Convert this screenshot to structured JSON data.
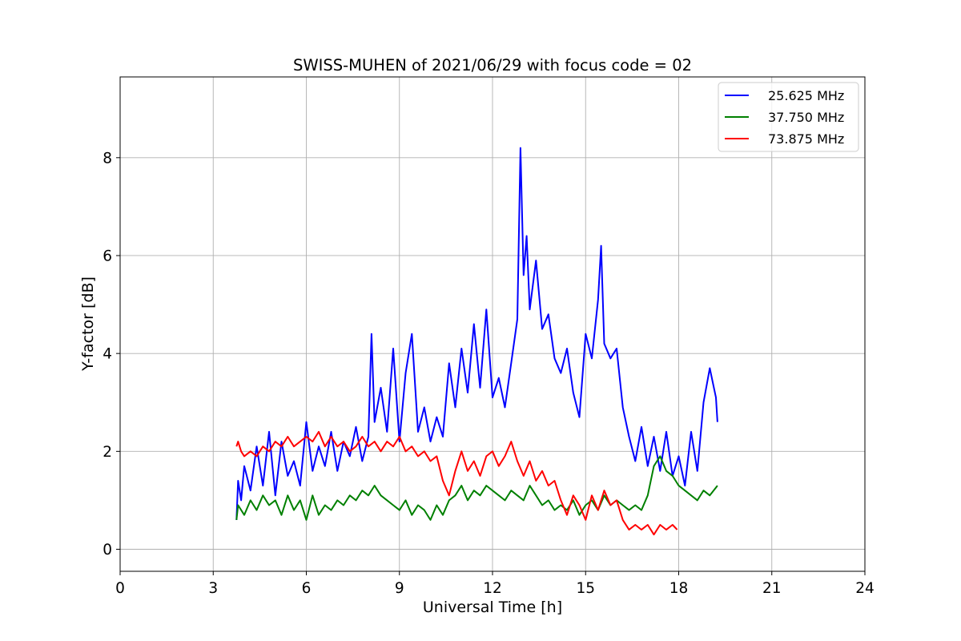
{
  "chart_data": {
    "type": "line",
    "title": "SWISS-MUHEN of 2021/06/29 with focus code = 02",
    "xlabel": "Universal Time [h]",
    "ylabel": "Y-factor [dB]",
    "xlim": [
      0,
      24
    ],
    "ylim": [
      -0.45,
      9.65
    ],
    "xticks": [
      0,
      3,
      6,
      9,
      12,
      15,
      18,
      21,
      24
    ],
    "yticks": [
      0,
      2,
      4,
      6,
      8
    ],
    "grid": true,
    "legend_position": "top-right",
    "series": [
      {
        "name": "25.625 MHz",
        "color": "#0000ff",
        "x": [
          3.75,
          3.8,
          3.9,
          4.0,
          4.2,
          4.4,
          4.6,
          4.8,
          5.0,
          5.2,
          5.4,
          5.6,
          5.8,
          6.0,
          6.2,
          6.4,
          6.6,
          6.8,
          7.0,
          7.2,
          7.4,
          7.6,
          7.8,
          8.0,
          8.1,
          8.2,
          8.4,
          8.6,
          8.8,
          9.0,
          9.2,
          9.4,
          9.6,
          9.8,
          10.0,
          10.2,
          10.4,
          10.6,
          10.8,
          11.0,
          11.2,
          11.4,
          11.6,
          11.8,
          12.0,
          12.2,
          12.4,
          12.6,
          12.8,
          12.9,
          13.0,
          13.1,
          13.2,
          13.4,
          13.6,
          13.8,
          14.0,
          14.2,
          14.4,
          14.6,
          14.8,
          15.0,
          15.2,
          15.4,
          15.5,
          15.6,
          15.8,
          16.0,
          16.2,
          16.4,
          16.6,
          16.8,
          17.0,
          17.2,
          17.4,
          17.6,
          17.8,
          18.0,
          18.2,
          18.4,
          18.6,
          18.8,
          19.0,
          19.2,
          19.25
        ],
        "y": [
          0.6,
          1.4,
          1.0,
          1.7,
          1.2,
          2.1,
          1.3,
          2.4,
          1.1,
          2.2,
          1.5,
          1.8,
          1.3,
          2.6,
          1.6,
          2.1,
          1.7,
          2.4,
          1.6,
          2.2,
          1.9,
          2.5,
          1.8,
          2.3,
          4.4,
          2.6,
          3.3,
          2.4,
          4.1,
          2.2,
          3.6,
          4.4,
          2.4,
          2.9,
          2.2,
          2.7,
          2.3,
          3.8,
          2.9,
          4.1,
          3.2,
          4.6,
          3.3,
          4.9,
          3.1,
          3.5,
          2.9,
          3.8,
          4.7,
          8.2,
          5.6,
          6.4,
          4.9,
          5.9,
          4.5,
          4.8,
          3.9,
          3.6,
          4.1,
          3.2,
          2.7,
          4.4,
          3.9,
          5.1,
          6.2,
          4.2,
          3.9,
          4.1,
          2.9,
          2.3,
          1.8,
          2.5,
          1.7,
          2.3,
          1.6,
          2.4,
          1.5,
          1.9,
          1.3,
          2.4,
          1.6,
          3.0,
          3.7,
          3.1,
          2.6
        ]
      },
      {
        "name": "37.750 MHz",
        "color": "#008000",
        "x": [
          3.75,
          3.8,
          4.0,
          4.2,
          4.4,
          4.6,
          4.8,
          5.0,
          5.2,
          5.4,
          5.6,
          5.8,
          6.0,
          6.2,
          6.4,
          6.6,
          6.8,
          7.0,
          7.2,
          7.4,
          7.6,
          7.8,
          8.0,
          8.2,
          8.4,
          8.6,
          8.8,
          9.0,
          9.2,
          9.4,
          9.6,
          9.8,
          10.0,
          10.2,
          10.4,
          10.6,
          10.8,
          11.0,
          11.2,
          11.4,
          11.6,
          11.8,
          12.0,
          12.2,
          12.4,
          12.6,
          12.8,
          13.0,
          13.2,
          13.4,
          13.6,
          13.8,
          14.0,
          14.2,
          14.4,
          14.6,
          14.8,
          15.0,
          15.2,
          15.4,
          15.6,
          15.8,
          16.0,
          16.2,
          16.4,
          16.6,
          16.8,
          17.0,
          17.2,
          17.4,
          17.6,
          17.8,
          18.0,
          18.2,
          18.4,
          18.6,
          18.8,
          19.0,
          19.25
        ],
        "y": [
          0.6,
          0.9,
          0.7,
          1.0,
          0.8,
          1.1,
          0.9,
          1.0,
          0.7,
          1.1,
          0.8,
          1.0,
          0.6,
          1.1,
          0.7,
          0.9,
          0.8,
          1.0,
          0.9,
          1.1,
          1.0,
          1.2,
          1.1,
          1.3,
          1.1,
          1.0,
          0.9,
          0.8,
          1.0,
          0.7,
          0.9,
          0.8,
          0.6,
          0.9,
          0.7,
          1.0,
          1.1,
          1.3,
          1.0,
          1.2,
          1.1,
          1.3,
          1.2,
          1.1,
          1.0,
          1.2,
          1.1,
          1.0,
          1.3,
          1.1,
          0.9,
          1.0,
          0.8,
          0.9,
          0.8,
          1.0,
          0.7,
          0.9,
          1.0,
          0.8,
          1.1,
          0.9,
          1.0,
          0.9,
          0.8,
          0.9,
          0.8,
          1.1,
          1.7,
          1.9,
          1.6,
          1.5,
          1.3,
          1.2,
          1.1,
          1.0,
          1.2,
          1.1,
          1.3
        ]
      },
      {
        "name": "73.875 MHz",
        "color": "#ff0000",
        "x": [
          3.75,
          3.8,
          3.9,
          4.0,
          4.2,
          4.4,
          4.6,
          4.8,
          5.0,
          5.2,
          5.4,
          5.6,
          5.8,
          6.0,
          6.2,
          6.4,
          6.6,
          6.8,
          7.0,
          7.2,
          7.4,
          7.6,
          7.8,
          8.0,
          8.2,
          8.4,
          8.6,
          8.8,
          9.0,
          9.2,
          9.4,
          9.6,
          9.8,
          10.0,
          10.2,
          10.4,
          10.6,
          10.8,
          11.0,
          11.2,
          11.4,
          11.6,
          11.8,
          12.0,
          12.2,
          12.4,
          12.6,
          12.8,
          13.0,
          13.2,
          13.4,
          13.6,
          13.8,
          14.0,
          14.2,
          14.4,
          14.6,
          14.8,
          15.0,
          15.2,
          15.4,
          15.6,
          15.8,
          16.0,
          16.2,
          16.4,
          16.6,
          16.8,
          17.0,
          17.2,
          17.4,
          17.6,
          17.8,
          17.95
        ],
        "y": [
          2.1,
          2.2,
          2.0,
          1.9,
          2.0,
          1.9,
          2.1,
          2.0,
          2.2,
          2.1,
          2.3,
          2.1,
          2.2,
          2.3,
          2.2,
          2.4,
          2.1,
          2.3,
          2.1,
          2.2,
          2.0,
          2.1,
          2.3,
          2.1,
          2.2,
          2.0,
          2.2,
          2.1,
          2.3,
          2.0,
          2.1,
          1.9,
          2.0,
          1.8,
          1.9,
          1.4,
          1.1,
          1.6,
          2.0,
          1.6,
          1.8,
          1.5,
          1.9,
          2.0,
          1.7,
          1.9,
          2.2,
          1.8,
          1.5,
          1.8,
          1.4,
          1.6,
          1.3,
          1.4,
          1.0,
          0.7,
          1.1,
          0.9,
          0.6,
          1.1,
          0.8,
          1.2,
          0.9,
          1.0,
          0.6,
          0.4,
          0.5,
          0.4,
          0.5,
          0.3,
          0.5,
          0.4,
          0.5,
          0.4
        ]
      }
    ]
  }
}
